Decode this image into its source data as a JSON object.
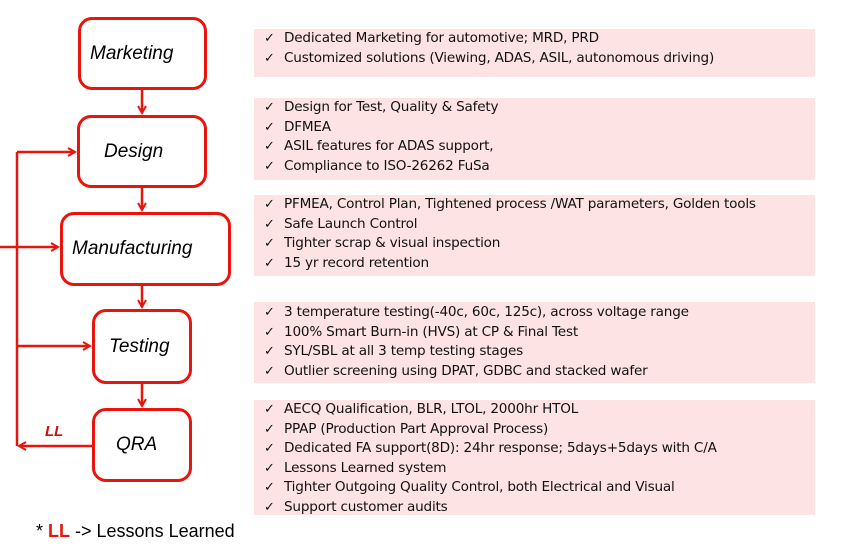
{
  "colors": {
    "accent": "#e8150d",
    "panel_bg": "#fde3e4"
  },
  "icons": {
    "bullet": "check-icon"
  },
  "stages": [
    {
      "label": "Marketing",
      "items": [
        "Dedicated Marketing for automotive; MRD, PRD",
        "Customized solutions (Viewing, ADAS, ASIL, autonomous driving)"
      ]
    },
    {
      "label": "Design",
      "items": [
        "Design for Test, Quality & Safety",
        "DFMEA",
        "ASIL features for ADAS support,",
        "Compliance to ISO-26262 FuSa"
      ]
    },
    {
      "label": "Manufacturing",
      "items": [
        "PFMEA, Control Plan, Tightened process /WAT parameters, Golden tools",
        "Safe Launch Control",
        "Tighter scrap & visual inspection",
        "15 yr record retention"
      ]
    },
    {
      "label": "Testing",
      "items": [
        "3 temperature testing(-40c, 60c, 125c), across voltage range",
        "100% Smart Burn-in (HVS) at CP & Final Test",
        "SYL/SBL at all 3 temp testing stages",
        "Outlier screening using DPAT, GDBC and stacked wafer"
      ]
    },
    {
      "label": "QRA",
      "items": [
        "AECQ Qualification, BLR, LTOL, 2000hr HTOL",
        "PPAP (Production Part Approval Process)",
        "Dedicated FA support(8D): 24hr response; 5days+5days with C/A",
        "Lessons Learned system",
        "Tighter Outgoing Quality Control, both Electrical and Visual",
        "Support customer audits"
      ]
    }
  ],
  "feedback_label": "LL",
  "footnote": {
    "prefix": "* ",
    "abbr": "LL",
    "text": " -> Lessons Learned"
  }
}
